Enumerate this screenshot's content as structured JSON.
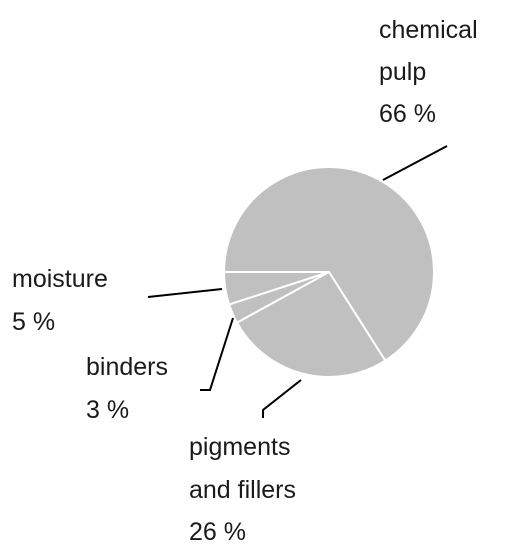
{
  "chart_data": {
    "type": "pie",
    "title": "",
    "slices": [
      {
        "label_lines": [
          "chemical",
          "pulp"
        ],
        "pct_label": "66 %",
        "value": 66
      },
      {
        "label_lines": [
          "pigments",
          "and fillers"
        ],
        "pct_label": "26 %",
        "value": 26
      },
      {
        "label_lines": [
          "binders"
        ],
        "pct_label": "3 %",
        "value": 3
      },
      {
        "label_lines": [
          "moisture"
        ],
        "pct_label": "5 %",
        "value": 5
      }
    ],
    "slice_color": "#c0c0c0",
    "separator_color": "#ffffff",
    "leader_color": "#000000",
    "legend": "none"
  }
}
